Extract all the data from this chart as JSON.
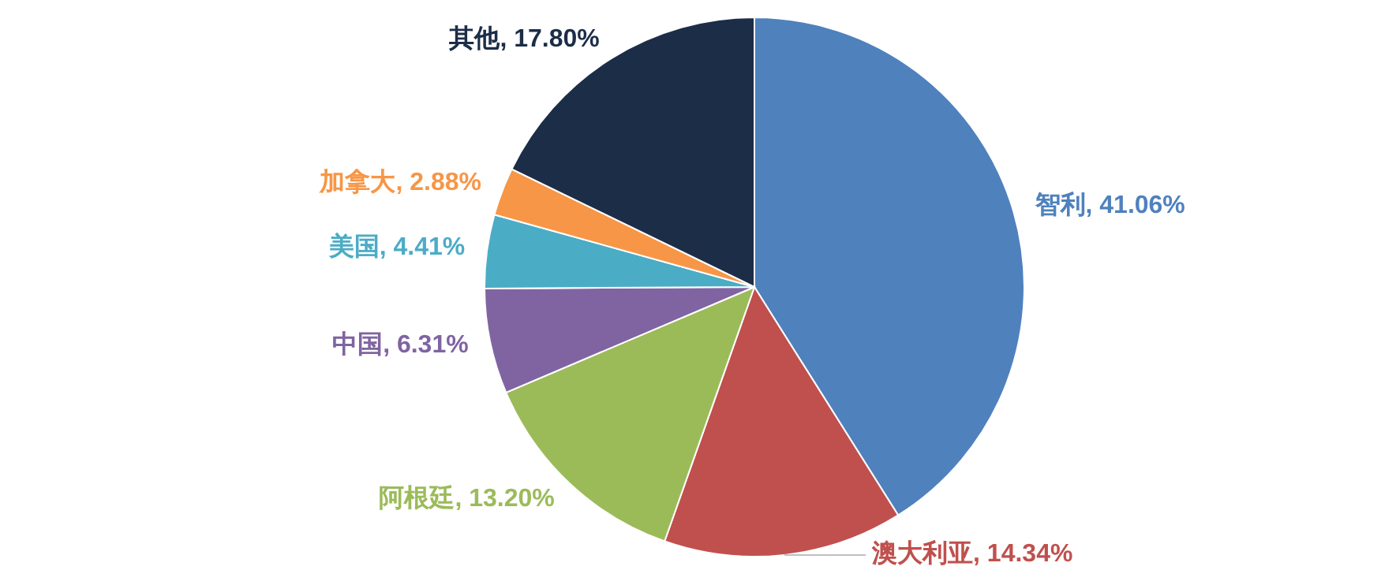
{
  "chart_data": {
    "type": "pie",
    "categories": [
      "智利",
      "澳大利亚",
      "阿根廷",
      "中国",
      "美国",
      "加拿大",
      "其他"
    ],
    "values": [
      41.06,
      14.34,
      13.2,
      6.31,
      4.41,
      2.88,
      17.8
    ],
    "colors": [
      "#4f81bd",
      "#c0504d",
      "#9bbb59",
      "#8064a2",
      "#4bacc6",
      "#f79646",
      "#1c2d47"
    ],
    "value_labels": [
      ", 41.06%",
      ", 14.34%",
      ", 13.20%",
      ", 6.31%",
      ", 4.41%",
      ", 2.88%",
      ", 17.80%"
    ]
  }
}
